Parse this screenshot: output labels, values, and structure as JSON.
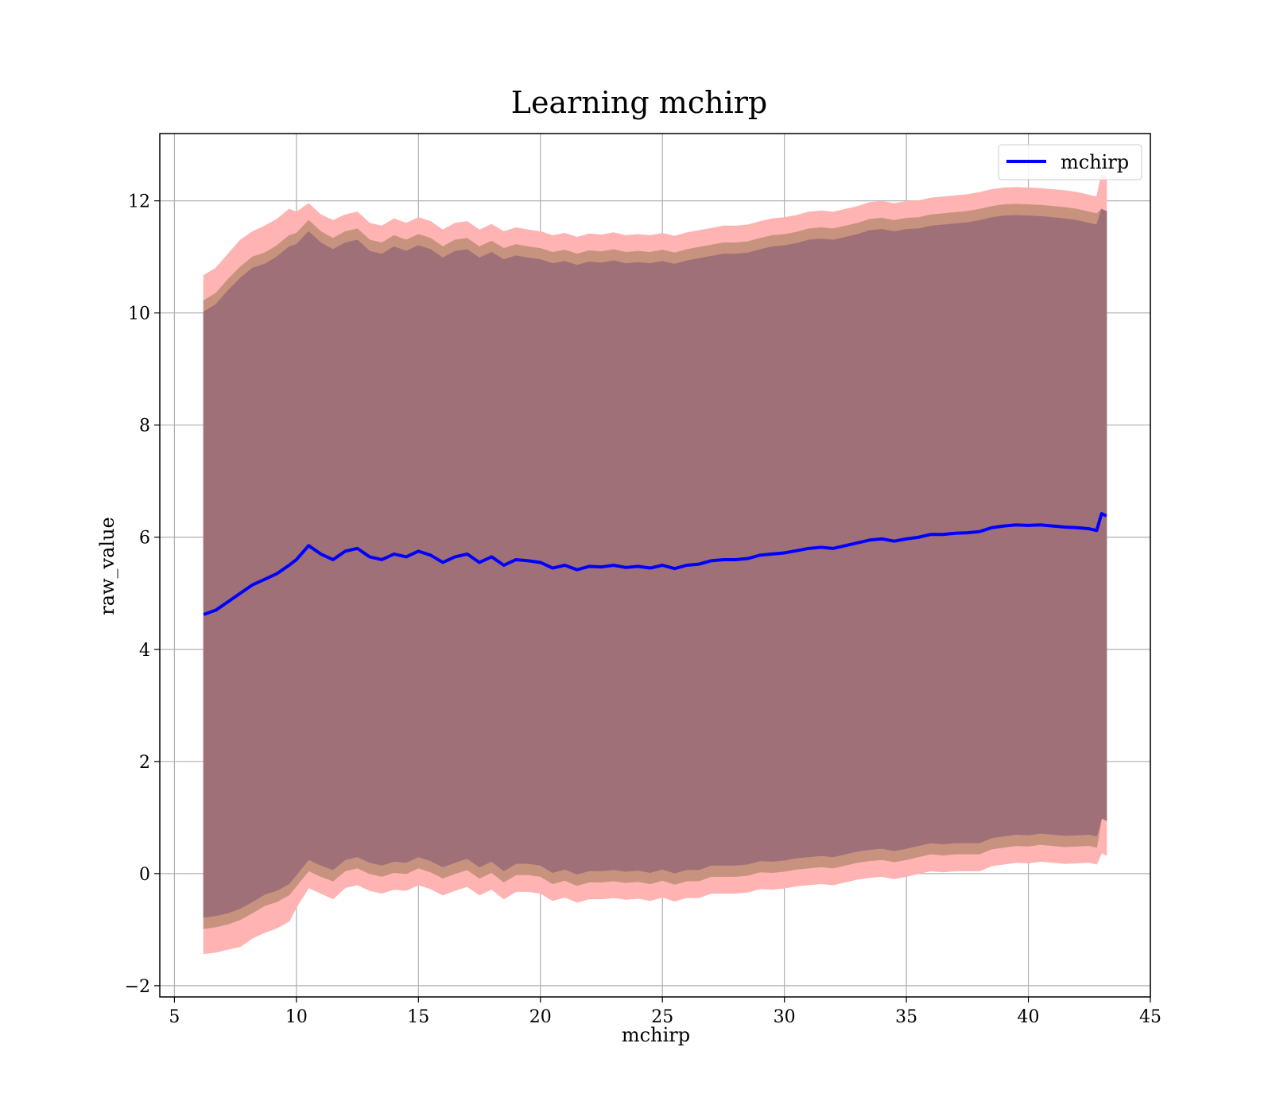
{
  "chart_data": {
    "type": "line",
    "title": "Learning mchirp",
    "xlabel": "mchirp",
    "ylabel": "raw_value",
    "xlim": [
      4.4,
      45
    ],
    "ylim": [
      -2.2,
      13.2
    ],
    "xticks": [
      5,
      10,
      15,
      20,
      25,
      30,
      35,
      40,
      45
    ],
    "yticks": [
      -2,
      0,
      2,
      4,
      6,
      8,
      10,
      12
    ],
    "xtick_labels": [
      "5",
      "10",
      "15",
      "20",
      "25",
      "30",
      "35",
      "40",
      "45"
    ],
    "ytick_labels": [
      "−2",
      "0",
      "2",
      "4",
      "6",
      "8",
      "10",
      "12"
    ],
    "grid": true,
    "legend": {
      "position": "top-right",
      "entries": [
        "mchirp"
      ]
    },
    "colors": {
      "line": "#0000ff",
      "band_outer": "#ffb3b3",
      "band_middle": "#c8937e",
      "band_inner": "#a07078"
    },
    "series": [
      {
        "name": "mchirp",
        "x": [
          6.2,
          6.7,
          7.2,
          7.7,
          8.2,
          8.7,
          9.2,
          9.7,
          10.0,
          10.5,
          11.0,
          11.5,
          12.0,
          12.5,
          13.0,
          13.5,
          14.0,
          14.5,
          15.0,
          15.5,
          16.0,
          16.5,
          17.0,
          17.5,
          18.0,
          18.5,
          19.0,
          19.5,
          20.0,
          20.5,
          21.0,
          21.5,
          22.0,
          22.5,
          23.0,
          23.5,
          24.0,
          24.5,
          25.0,
          25.5,
          26.0,
          26.5,
          27.0,
          27.5,
          28.0,
          28.5,
          29.0,
          29.5,
          30.0,
          30.5,
          31.0,
          31.5,
          32.0,
          32.5,
          33.0,
          33.5,
          34.0,
          34.5,
          35.0,
          35.5,
          36.0,
          36.5,
          37.0,
          37.5,
          38.0,
          38.5,
          39.0,
          39.5,
          40.0,
          40.5,
          41.0,
          41.5,
          42.0,
          42.5,
          42.8,
          43.0,
          43.2
        ],
        "y": [
          4.62,
          4.7,
          4.85,
          5.0,
          5.15,
          5.25,
          5.35,
          5.5,
          5.6,
          5.85,
          5.7,
          5.6,
          5.75,
          5.8,
          5.65,
          5.6,
          5.7,
          5.65,
          5.75,
          5.68,
          5.55,
          5.65,
          5.7,
          5.55,
          5.65,
          5.5,
          5.6,
          5.58,
          5.55,
          5.45,
          5.5,
          5.42,
          5.48,
          5.47,
          5.5,
          5.46,
          5.48,
          5.45,
          5.5,
          5.44,
          5.5,
          5.52,
          5.58,
          5.6,
          5.6,
          5.62,
          5.68,
          5.7,
          5.72,
          5.76,
          5.8,
          5.82,
          5.8,
          5.85,
          5.9,
          5.95,
          5.97,
          5.93,
          5.97,
          6.0,
          6.05,
          6.05,
          6.07,
          6.08,
          6.1,
          6.17,
          6.2,
          6.22,
          6.21,
          6.22,
          6.2,
          6.18,
          6.17,
          6.15,
          6.12,
          6.42,
          6.38
        ],
        "band_inner": [
          5.4,
          5.45,
          5.55,
          5.62,
          5.65,
          5.62,
          5.65,
          5.68,
          5.62,
          5.6,
          5.55,
          5.53,
          5.5,
          5.5,
          5.45,
          5.45,
          5.48,
          5.45,
          5.45,
          5.45,
          5.43,
          5.45,
          5.43,
          5.43,
          5.43,
          5.45,
          5.42,
          5.4,
          5.4,
          5.43,
          5.42,
          5.43,
          5.43,
          5.42,
          5.43,
          5.42,
          5.42,
          5.43,
          5.42,
          5.43,
          5.43,
          5.45,
          5.43,
          5.45,
          5.45,
          5.45,
          5.45,
          5.48,
          5.48,
          5.48,
          5.5,
          5.5,
          5.5,
          5.5,
          5.5,
          5.52,
          5.52,
          5.52,
          5.52,
          5.5,
          5.5,
          5.52,
          5.52,
          5.53,
          5.55,
          5.53,
          5.53,
          5.52,
          5.52,
          5.5,
          5.5,
          5.5,
          5.48,
          5.45,
          5.45,
          5.43,
          5.43
        ],
        "band_middle": [
          5.6,
          5.65,
          5.75,
          5.82,
          5.85,
          5.82,
          5.85,
          5.88,
          5.82,
          5.8,
          5.75,
          5.73,
          5.7,
          5.7,
          5.65,
          5.65,
          5.68,
          5.65,
          5.65,
          5.65,
          5.63,
          5.65,
          5.63,
          5.63,
          5.63,
          5.65,
          5.62,
          5.6,
          5.6,
          5.63,
          5.62,
          5.63,
          5.63,
          5.62,
          5.63,
          5.62,
          5.62,
          5.63,
          5.62,
          5.63,
          5.63,
          5.65,
          5.63,
          5.65,
          5.65,
          5.65,
          5.65,
          5.68,
          5.68,
          5.68,
          5.7,
          5.7,
          5.7,
          5.7,
          5.7,
          5.72,
          5.72,
          5.72,
          5.72,
          5.7,
          5.7,
          5.72,
          5.72,
          5.73,
          5.75,
          5.73,
          5.73,
          5.72,
          5.72,
          5.7,
          5.7,
          5.7,
          5.68,
          5.65,
          5.65,
          5.43,
          5.43
        ],
        "band_outer": [
          6.05,
          6.1,
          6.2,
          6.3,
          6.3,
          6.3,
          6.32,
          6.35,
          6.2,
          6.1,
          6.05,
          6.05,
          6.0,
          6.0,
          5.95,
          5.95,
          5.98,
          5.95,
          5.95,
          5.95,
          5.93,
          5.95,
          5.93,
          5.93,
          5.93,
          5.95,
          5.92,
          5.9,
          5.9,
          5.93,
          5.92,
          5.93,
          5.93,
          5.92,
          5.93,
          5.92,
          5.92,
          5.93,
          5.92,
          5.93,
          5.93,
          5.95,
          5.93,
          5.95,
          5.95,
          5.95,
          5.95,
          5.98,
          5.98,
          5.98,
          6.0,
          6.0,
          6.0,
          6.0,
          6.0,
          6.02,
          6.02,
          6.02,
          6.02,
          6.0,
          6.0,
          6.02,
          6.02,
          6.03,
          6.05,
          6.03,
          6.03,
          6.02,
          6.02,
          6.0,
          6.0,
          6.0,
          5.98,
          5.95,
          5.95,
          6.05,
          6.05
        ]
      }
    ]
  }
}
